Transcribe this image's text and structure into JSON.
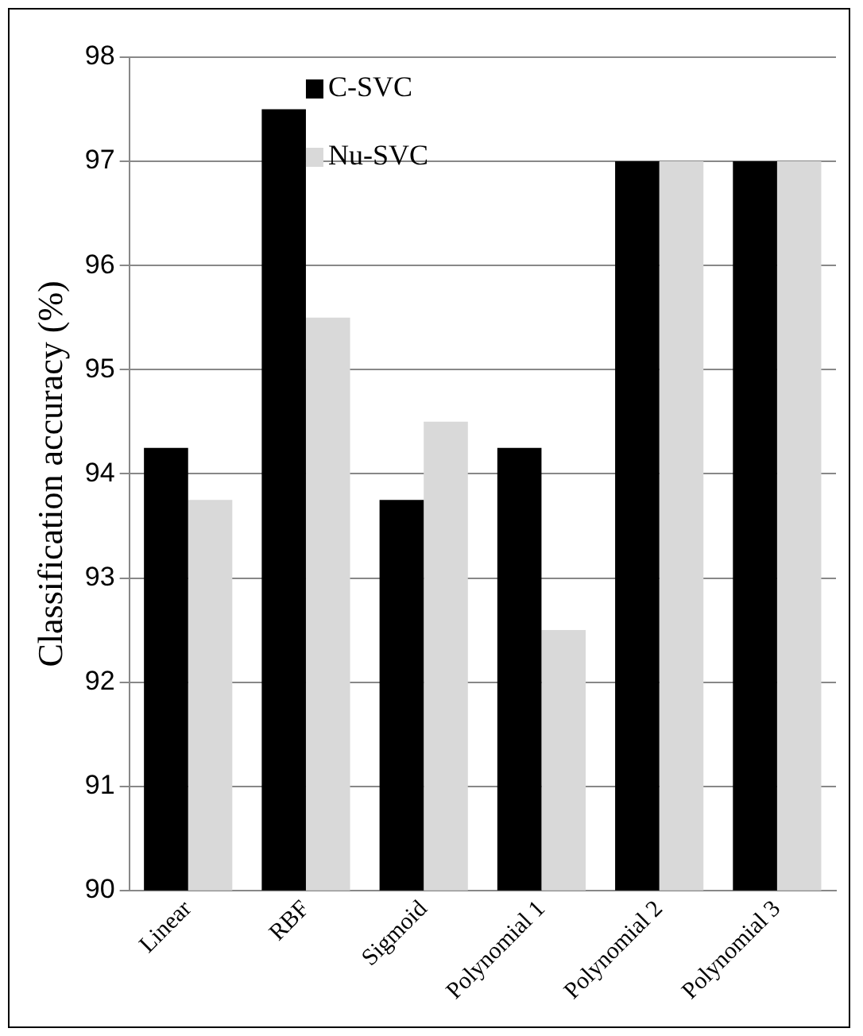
{
  "chart_data": {
    "type": "bar",
    "ylabel": "Classification accuracy (%)",
    "categories": [
      "Linear",
      "RBF",
      "Sigmoid",
      "Polynomial 1",
      "Polynomial 2",
      "Polynomial 3"
    ],
    "series": [
      {
        "name": "C-SVC",
        "color": "#000000",
        "values": [
          94.25,
          97.5,
          93.75,
          94.25,
          97,
          97
        ]
      },
      {
        "name": "Nu-SVC",
        "color": "#d9d9d9",
        "values": [
          93.75,
          95.5,
          94.5,
          92.5,
          97,
          97
        ]
      }
    ],
    "ylim": [
      90,
      98
    ],
    "yticks": [
      90,
      91,
      92,
      93,
      94,
      95,
      96,
      97,
      98
    ],
    "grid": "y",
    "legend": "top"
  }
}
